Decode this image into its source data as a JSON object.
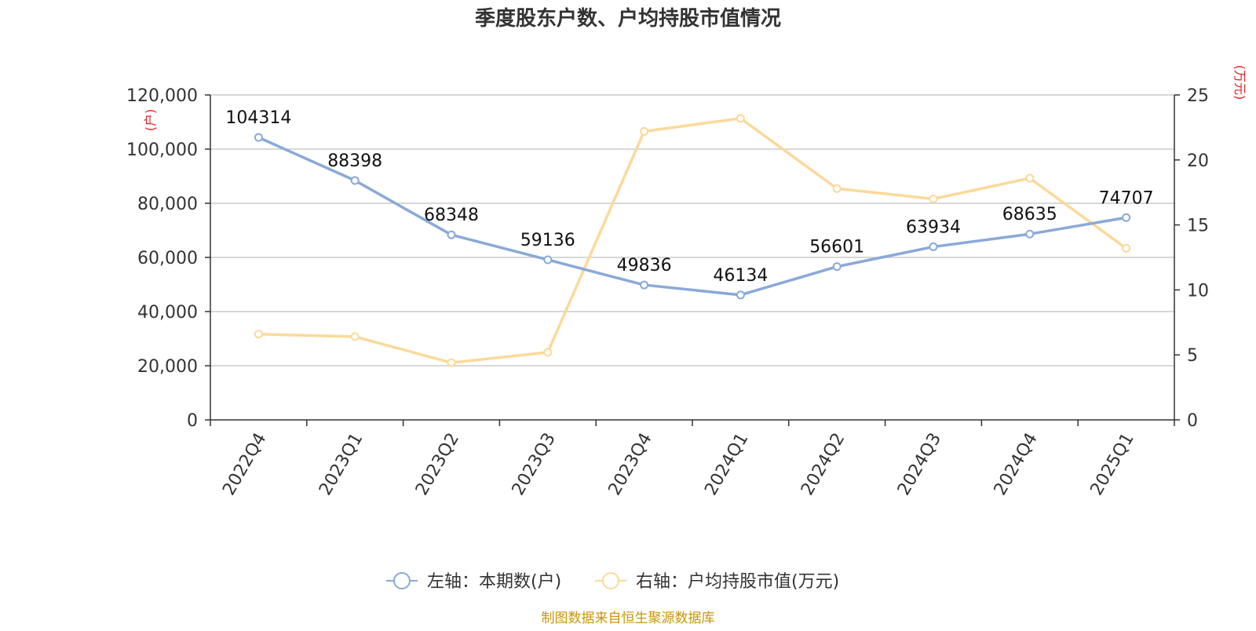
{
  "chart_data": {
    "type": "line",
    "title": "季度股东户数、户均持股市值情况",
    "categories": [
      "2022Q4",
      "2023Q1",
      "2023Q2",
      "2023Q3",
      "2023Q4",
      "2024Q1",
      "2024Q2",
      "2024Q3",
      "2024Q4",
      "2025Q1"
    ],
    "series": [
      {
        "name": "左轴：本期数(户)",
        "axis": "left",
        "color": "#8aa9d8",
        "values": [
          104314,
          88398,
          68348,
          59136,
          49836,
          46134,
          56601,
          63934,
          68635,
          74707
        ],
        "data_labels": [
          "104314",
          "88398",
          "68348",
          "59136",
          "49836",
          "46134",
          "56601",
          "63934",
          "68635",
          "74707"
        ]
      },
      {
        "name": "右轴：户均持股市值(万元)",
        "axis": "right",
        "color": "#fbd99a",
        "values": [
          6.6,
          6.4,
          4.4,
          5.2,
          22.2,
          23.2,
          17.8,
          17.0,
          18.6,
          13.2
        ]
      }
    ],
    "left_axis": {
      "unit": "(户)",
      "ylim": [
        0,
        120000
      ],
      "ticks": [
        0,
        20000,
        40000,
        60000,
        80000,
        100000,
        120000
      ],
      "tick_labels": [
        "0",
        "20,000",
        "40,000",
        "60,000",
        "80,000",
        "100,000",
        "120,000"
      ]
    },
    "right_axis": {
      "unit": "(万元)",
      "ylim": [
        0,
        25
      ],
      "ticks": [
        0,
        5,
        10,
        15,
        20,
        25
      ],
      "tick_labels": [
        "0",
        "5",
        "10",
        "15",
        "20",
        "25"
      ]
    },
    "grid": true,
    "legend_position": "bottom-center",
    "source": "制图数据来自恒生聚源数据库"
  }
}
